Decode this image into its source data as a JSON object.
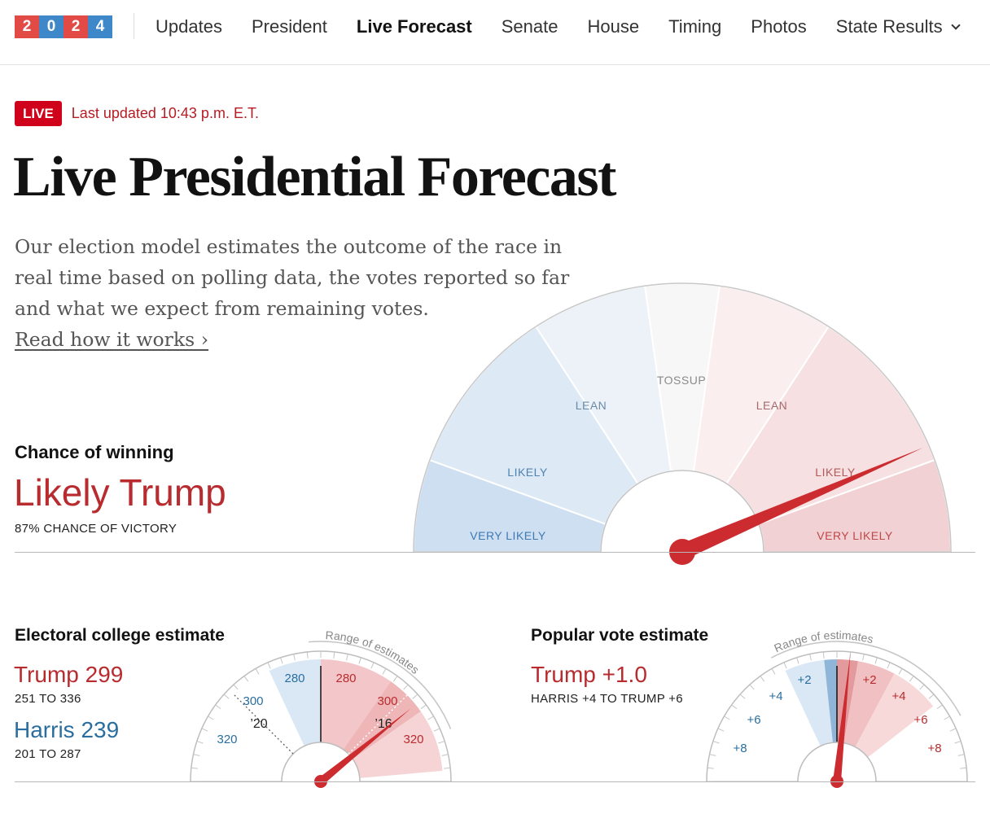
{
  "nav": {
    "logo_digits": [
      "2",
      "0",
      "2",
      "4"
    ],
    "links": [
      {
        "label": "Updates",
        "active": false
      },
      {
        "label": "President",
        "active": false
      },
      {
        "label": "Live Forecast",
        "active": true
      },
      {
        "label": "Senate",
        "active": false
      },
      {
        "label": "House",
        "active": false
      },
      {
        "label": "Timing",
        "active": false
      },
      {
        "label": "Photos",
        "active": false
      },
      {
        "label": "State Results",
        "active": false
      }
    ]
  },
  "status": {
    "badge": "LIVE",
    "updated": "Last updated 10:43 p.m. E.T."
  },
  "page_title": "Live Presidential Forecast",
  "intro": {
    "text": "Our election model estimates the outcome of the race in real time based on polling data, the votes reported so far and what we expect from remaining votes.",
    "link": "Read how it works ›"
  },
  "chance": {
    "heading": "Chance of winning",
    "value": "Likely Trump",
    "sub": "87% CHANCE OF VICTORY",
    "needle_trump_probability": 0.87,
    "segments": [
      "VERY LIKELY",
      "LIKELY",
      "LEAN",
      "TOSSUP",
      "LEAN",
      "LIKELY",
      "VERY LIKELY"
    ]
  },
  "electoral": {
    "heading": "Electoral college estimate",
    "trump": {
      "label": "Trump 299",
      "range": "251 TO 336"
    },
    "harris": {
      "label": "Harris 239",
      "range": "201 TO 287"
    },
    "gauge": {
      "range_label": "Range of estimates",
      "blue_ticks": [
        "280",
        "300",
        "320"
      ],
      "red_ticks": [
        "280",
        "300",
        "320"
      ],
      "marker_2020": "’20",
      "marker_2016": "’16"
    }
  },
  "popular": {
    "heading": "Popular vote estimate",
    "value": "Trump +1.0",
    "range": "HARRIS +4 TO TRUMP +6",
    "gauge": {
      "range_label": "Range of estimates",
      "blue_ticks": [
        "+2",
        "+4",
        "+6",
        "+8"
      ],
      "red_ticks": [
        "+2",
        "+4",
        "+6",
        "+8"
      ]
    }
  },
  "colors": {
    "trump_red": "#b82b2f",
    "harris_blue": "#2a6e9f",
    "live_red": "#d0021b",
    "needle": "#cc2b2f"
  }
}
